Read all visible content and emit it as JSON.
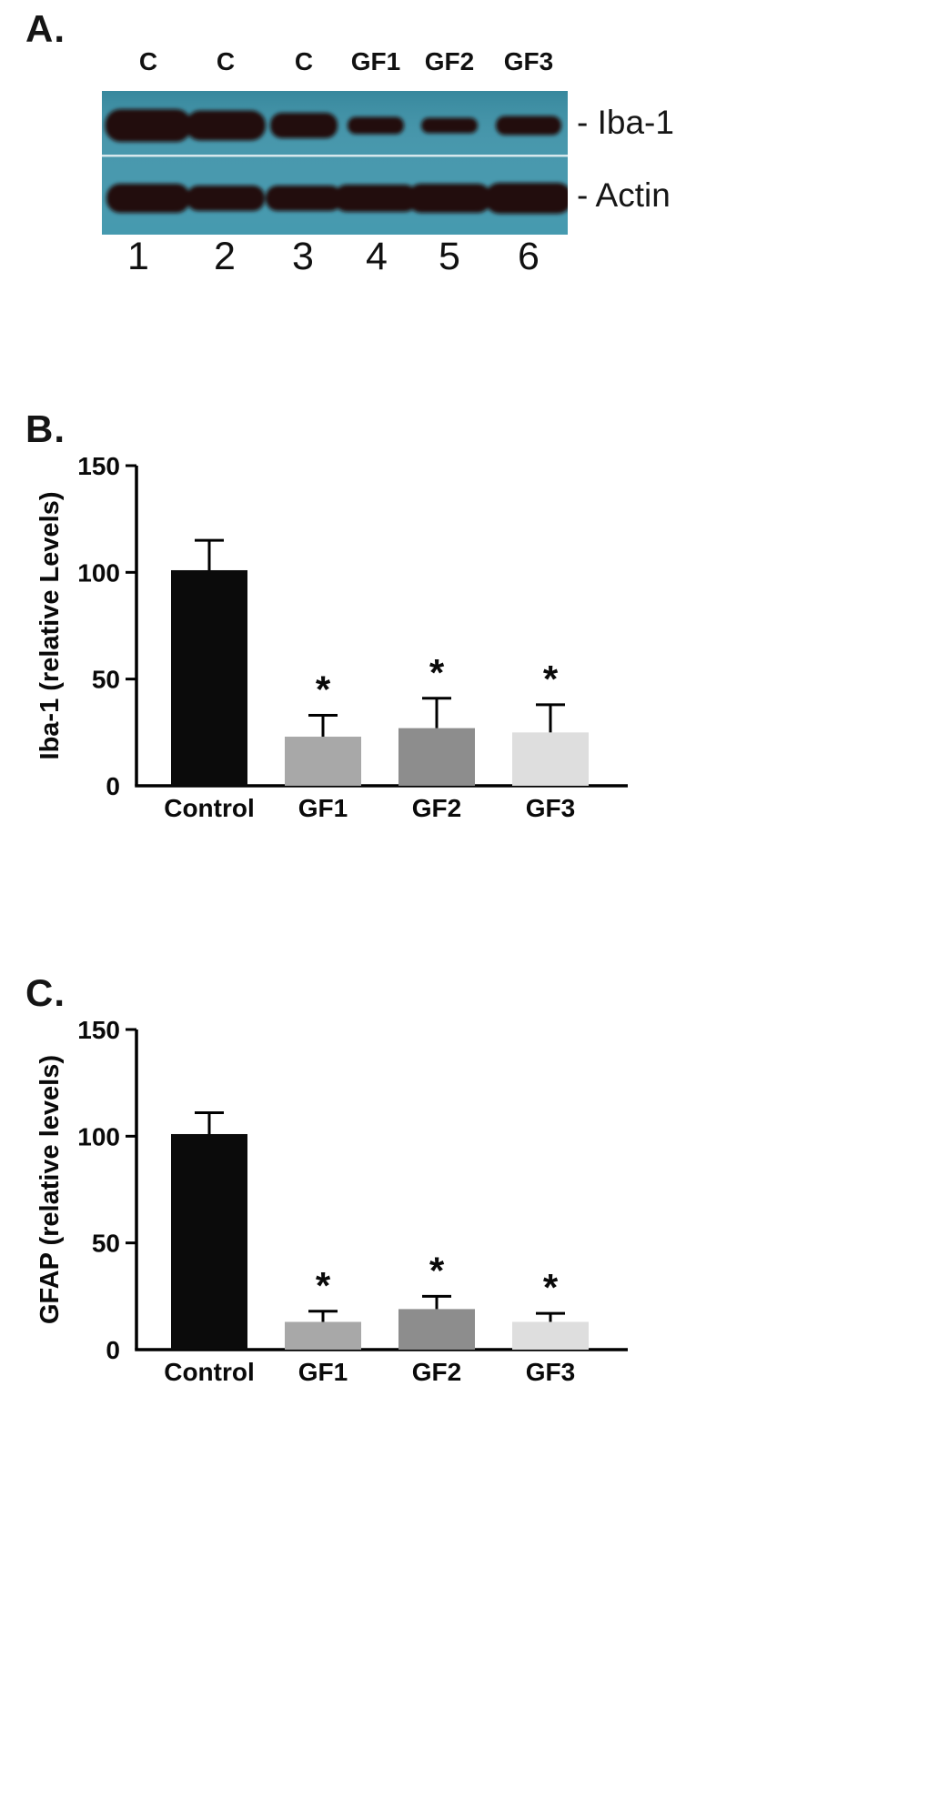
{
  "figure": {
    "panels": {
      "a": "A.",
      "b": "B.",
      "c": "C."
    }
  },
  "blot": {
    "lane_labels": [
      "C",
      "C",
      "C",
      "GF1",
      "GF2",
      "GF3"
    ],
    "lane_numbers": [
      "1",
      "2",
      "3",
      "4",
      "5",
      "6"
    ],
    "band_labels": [
      "- Iba-1",
      "- Actin"
    ],
    "membrane_color": "#3f93a9",
    "band_color": "#20100a"
  },
  "chart_data": [
    {
      "type": "bar",
      "panel": "B",
      "title": "",
      "xlabel": "",
      "ylabel": "Iba-1 (relative Levels)",
      "ylim": [
        0,
        150
      ],
      "yticks": [
        0,
        50,
        100,
        150
      ],
      "categories": [
        "Control",
        "GF1",
        "GF2",
        "GF3"
      ],
      "values": [
        101,
        23,
        27,
        25
      ],
      "errors": [
        14,
        10,
        14,
        13
      ],
      "significance": [
        "",
        "*",
        "*",
        "*"
      ],
      "bar_colors": [
        "#0b0b0b",
        "#a8a8a8",
        "#8d8d8d",
        "#dedede"
      ],
      "grid": false,
      "legend": "none"
    },
    {
      "type": "bar",
      "panel": "C",
      "title": "",
      "xlabel": "",
      "ylabel": "GFAP (relative levels)",
      "ylim": [
        0,
        150
      ],
      "yticks": [
        0,
        50,
        100,
        150
      ],
      "categories": [
        "Control",
        "GF1",
        "GF2",
        "GF3"
      ],
      "values": [
        101,
        13,
        19,
        13
      ],
      "errors": [
        10,
        5,
        6,
        4
      ],
      "significance": [
        "",
        "*",
        "*",
        "*"
      ],
      "bar_colors": [
        "#0b0b0b",
        "#a8a8a8",
        "#8d8d8d",
        "#dedede"
      ],
      "grid": false,
      "legend": "none"
    }
  ]
}
